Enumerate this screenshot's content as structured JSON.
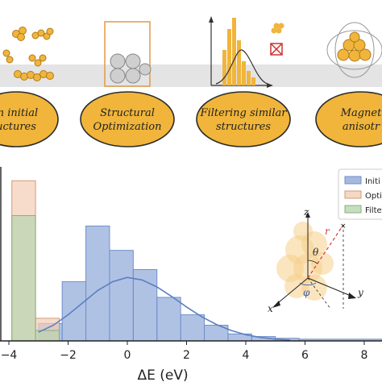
{
  "workflow": {
    "band_color": "#e4e4e4",
    "node_fill": "#f0b53a",
    "node_stroke": "#2a2a2a",
    "steps": [
      {
        "line1": "m initial",
        "line2": "uctures"
      },
      {
        "line1": "Structural",
        "line2": "Optimization"
      },
      {
        "line1": "Filtering similar",
        "line2": "structures"
      },
      {
        "line1": "Magnet",
        "line2": "anisotr"
      }
    ]
  },
  "chart_data": {
    "type": "histogram",
    "xlabel": "ΔE (eV)",
    "xlim": [
      -4.3,
      8.6
    ],
    "ylim": [
      0,
      1
    ],
    "x_ticks": [
      -4,
      -2,
      0,
      2,
      4,
      6,
      8
    ],
    "x_tick_labels": [
      "−4",
      "−2",
      "0",
      "2",
      "4",
      "6",
      "8"
    ],
    "legend_position": "top-right",
    "series": [
      {
        "name": "Initial",
        "color": "#8fa8d8",
        "edge": "#6f8fc8",
        "bins": [
          {
            "x0": -3.0,
            "x1": -2.2,
            "y": 0.1
          },
          {
            "x0": -2.2,
            "x1": -1.4,
            "y": 0.34
          },
          {
            "x0": -1.4,
            "x1": -0.6,
            "y": 0.66
          },
          {
            "x0": -0.6,
            "x1": 0.2,
            "y": 0.52
          },
          {
            "x0": 0.2,
            "x1": 1.0,
            "y": 0.41
          },
          {
            "x0": 1.0,
            "x1": 1.8,
            "y": 0.25
          },
          {
            "x0": 1.8,
            "x1": 2.6,
            "y": 0.15
          },
          {
            "x0": 2.6,
            "x1": 3.4,
            "y": 0.09
          },
          {
            "x0": 3.4,
            "x1": 4.2,
            "y": 0.04
          },
          {
            "x0": 4.2,
            "x1": 5.0,
            "y": 0.025
          },
          {
            "x0": 5.0,
            "x1": 5.8,
            "y": 0.015
          },
          {
            "x0": 5.8,
            "x1": 8.6,
            "y": 0.01
          }
        ],
        "fit_curve": [
          [
            -3.0,
            0.05
          ],
          [
            -2.5,
            0.09
          ],
          [
            -2.0,
            0.15
          ],
          [
            -1.5,
            0.22
          ],
          [
            -1.0,
            0.29
          ],
          [
            -0.5,
            0.34
          ],
          [
            0.0,
            0.365
          ],
          [
            0.5,
            0.35
          ],
          [
            1.0,
            0.31
          ],
          [
            1.5,
            0.255
          ],
          [
            2.0,
            0.195
          ],
          [
            2.5,
            0.14
          ],
          [
            3.0,
            0.095
          ],
          [
            3.5,
            0.06
          ],
          [
            4.0,
            0.035
          ],
          [
            4.5,
            0.02
          ],
          [
            5.0,
            0.01
          ],
          [
            5.5,
            0.005
          ]
        ]
      },
      {
        "name": "Optimized",
        "color": "#f3cdb6",
        "edge": "#d69a75",
        "bins": [
          {
            "x0": -3.9,
            "x1": -3.1,
            "y": 0.92
          },
          {
            "x0": -3.1,
            "x1": -2.3,
            "y": 0.13
          }
        ]
      },
      {
        "name": "Filtered",
        "color": "#b8d4b0",
        "edge": "#88b07e",
        "bins": [
          {
            "x0": -3.9,
            "x1": -3.1,
            "y": 0.72
          },
          {
            "x0": -3.1,
            "x1": -2.3,
            "y": 0.06
          }
        ]
      }
    ],
    "legend_entries_visible": [
      "Initi",
      "Optir",
      "Filte"
    ]
  },
  "inset": {
    "axis_labels": [
      "z",
      "x",
      "y"
    ],
    "angle_labels": [
      "θ",
      "φ",
      "r"
    ]
  }
}
